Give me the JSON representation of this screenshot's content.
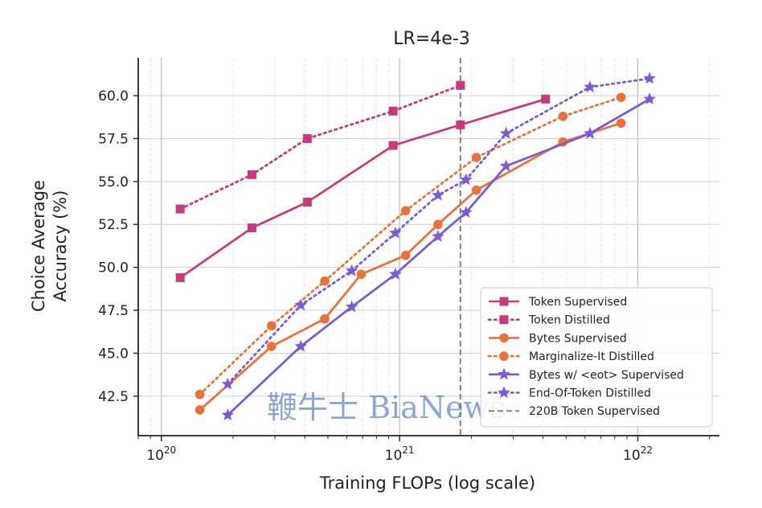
{
  "chart_data": {
    "type": "line",
    "title": "LR=4e-3",
    "xlabel": "Training FLOPs (log scale)",
    "ylabel_lines": [
      "Choice Average",
      "Accuracy (%)"
    ],
    "x_scale": "log",
    "xlim": [
      8e+19,
      2.2e+22
    ],
    "ylim": [
      40.2,
      62.2
    ],
    "x_ticks": [
      {
        "value": 1e+20,
        "base": "10",
        "exp": "20"
      },
      {
        "value": 1e+21,
        "base": "10",
        "exp": "21"
      },
      {
        "value": 1e+22,
        "base": "10",
        "exp": "22"
      }
    ],
    "y_ticks": [
      42.5,
      45.0,
      47.5,
      50.0,
      52.5,
      55.0,
      57.5,
      60.0
    ],
    "y_tick_labels": [
      "42.5",
      "45.0",
      "47.5",
      "50.0",
      "52.5",
      "55.0",
      "57.5",
      "60.0"
    ],
    "grid": true,
    "reference_line": {
      "name": "220B Token Supervised",
      "x": 1.8e+21,
      "color": "#808080"
    },
    "legend_position": "lower-right",
    "series": [
      {
        "name": "Token Supervised",
        "color": "#c73b7c",
        "marker": "square",
        "style": "solid",
        "x": [
          1.2e+20,
          2.4e+20,
          4.1e+20,
          9.4e+20,
          1.8e+21,
          4.1e+21
        ],
        "y": [
          49.4,
          52.3,
          53.8,
          57.1,
          58.3,
          59.8
        ]
      },
      {
        "name": "Token Distilled",
        "color": "#c73b7c",
        "marker": "square",
        "style": "dotted",
        "x": [
          1.2e+20,
          2.4e+20,
          4.1e+20,
          9.4e+20,
          1.8e+21
        ],
        "y": [
          53.4,
          55.4,
          57.5,
          59.1,
          60.6
        ]
      },
      {
        "name": "Bytes Supervised",
        "color": "#e8733a",
        "marker": "circle",
        "style": "solid",
        "x": [
          1.45e+20,
          2.9e+20,
          4.85e+20,
          6.9e+20,
          1.06e+21,
          1.45e+21,
          2.1e+21,
          4.85e+21,
          8.5e+21
        ],
        "y": [
          41.7,
          45.4,
          47.0,
          49.6,
          50.7,
          52.5,
          54.5,
          57.3,
          58.4
        ]
      },
      {
        "name": "Marginalize-It Distilled",
        "color": "#e8733a",
        "marker": "circle",
        "style": "dotted",
        "x": [
          1.45e+20,
          2.9e+20,
          4.85e+20,
          1.06e+21,
          2.1e+21,
          4.85e+21,
          8.5e+21
        ],
        "y": [
          42.6,
          46.6,
          49.2,
          53.3,
          56.4,
          58.8,
          59.9
        ]
      },
      {
        "name": "Bytes w/ <eot> Supervised",
        "color": "#7a5bd6",
        "marker": "star",
        "style": "solid",
        "x": [
          1.9e+20,
          3.85e+20,
          6.3e+20,
          9.6e+20,
          1.45e+21,
          1.9e+21,
          2.8e+21,
          6.3e+21,
          1.12e+22
        ],
        "y": [
          41.4,
          45.4,
          47.7,
          49.6,
          51.8,
          53.2,
          55.9,
          57.8,
          59.8
        ]
      },
      {
        "name": "End-Of-Token Distilled",
        "color": "#7a5bd6",
        "marker": "star",
        "style": "dotted",
        "x": [
          1.9e+20,
          3.85e+20,
          6.3e+20,
          9.6e+20,
          1.45e+21,
          1.9e+21,
          2.8e+21,
          6.3e+21,
          1.12e+22
        ],
        "y": [
          43.2,
          47.8,
          49.8,
          52.0,
          54.2,
          55.1,
          57.8,
          60.5,
          61.0
        ]
      }
    ]
  },
  "watermark": {
    "text": "鞭牛士 BiaNews"
  }
}
